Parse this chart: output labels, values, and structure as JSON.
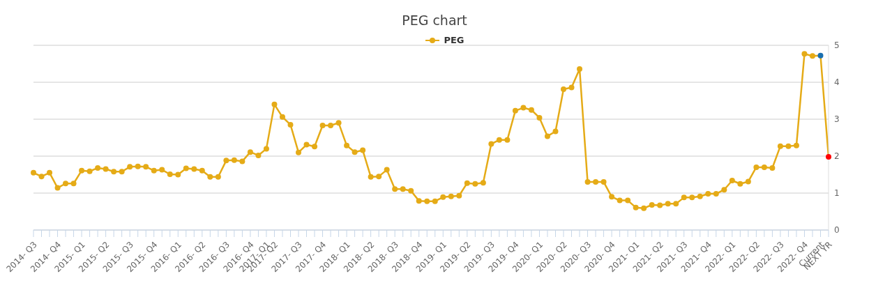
{
  "chart_data": {
    "type": "line",
    "title": "PEG chart",
    "categories": [
      "2014- Q3",
      null,
      null,
      "2014- Q4",
      null,
      null,
      "2015- Q1",
      null,
      null,
      "2015- Q2",
      null,
      null,
      "2015- Q3",
      null,
      null,
      "2015- Q4",
      null,
      null,
      "2016- Q1",
      null,
      null,
      "2016- Q2",
      null,
      null,
      "2016- Q3",
      null,
      null,
      "2016- Q4",
      null,
      "2017- Q1",
      "2017- Q2",
      null,
      null,
      "2017- Q3",
      null,
      null,
      "2017- Q4",
      null,
      null,
      "2018- Q1",
      null,
      null,
      "2018- Q2",
      null,
      null,
      "2018- Q3",
      null,
      null,
      "2018- Q4",
      null,
      null,
      "2019- Q1",
      null,
      null,
      "2019- Q2",
      null,
      null,
      "2019- Q3",
      null,
      null,
      "2019- Q4",
      null,
      null,
      "2020- Q1",
      null,
      null,
      "2020- Q2",
      null,
      null,
      "2020- Q3",
      null,
      null,
      "2020- Q4",
      null,
      null,
      "2021- Q1",
      null,
      null,
      "2021- Q2",
      null,
      null,
      "2021- Q3",
      null,
      null,
      "2021- Q4",
      null,
      null,
      "2022- Q1",
      null,
      null,
      "2022- Q2",
      null,
      null,
      "2022- Q3",
      null,
      null,
      "2022- Q4",
      null,
      "Current",
      "NEXT YR"
    ],
    "series": [
      {
        "name": "PEG",
        "color": "#e5ab17",
        "colors": [
          "#e5ab17",
          "#e5ab17",
          "#e5ab17",
          "#e5ab17",
          "#e5ab17",
          "#e5ab17",
          "#e5ab17",
          "#e5ab17",
          "#e5ab17",
          "#e5ab17",
          "#e5ab17",
          "#e5ab17",
          "#e5ab17",
          "#e5ab17",
          "#e5ab17",
          "#e5ab17",
          "#e5ab17",
          "#e5ab17",
          "#e5ab17",
          "#e5ab17",
          "#e5ab17",
          "#e5ab17",
          "#e5ab17",
          "#e5ab17",
          "#e5ab17",
          "#e5ab17",
          "#e5ab17",
          "#e5ab17",
          "#e5ab17",
          "#e5ab17",
          "#e5ab17",
          "#e5ab17",
          "#e5ab17",
          "#e5ab17",
          "#e5ab17",
          "#e5ab17",
          "#e5ab17",
          "#e5ab17",
          "#e5ab17",
          "#e5ab17",
          "#e5ab17",
          "#e5ab17",
          "#e5ab17",
          "#e5ab17",
          "#e5ab17",
          "#e5ab17",
          "#e5ab17",
          "#e5ab17",
          "#e5ab17",
          "#e5ab17",
          "#e5ab17",
          "#e5ab17",
          "#e5ab17",
          "#e5ab17",
          "#e5ab17",
          "#e5ab17",
          "#e5ab17",
          "#e5ab17",
          "#e5ab17",
          "#e5ab17",
          "#e5ab17",
          "#e5ab17",
          "#e5ab17",
          "#e5ab17",
          "#e5ab17",
          "#e5ab17",
          "#e5ab17",
          "#e5ab17",
          "#e5ab17",
          "#e5ab17",
          "#e5ab17",
          "#e5ab17",
          "#e5ab17",
          "#e5ab17",
          "#e5ab17",
          "#e5ab17",
          "#e5ab17",
          "#e5ab17",
          "#e5ab17",
          "#e5ab17",
          "#e5ab17",
          "#e5ab17",
          "#e5ab17",
          "#e5ab17",
          "#e5ab17",
          "#e5ab17",
          "#e5ab17",
          "#e5ab17",
          "#e5ab17",
          "#e5ab17",
          "#e5ab17",
          "#e5ab17",
          "#e5ab17",
          "#e5ab17",
          "#e5ab17",
          "#e5ab17",
          "#e5ab17",
          "#e5ab17",
          "#1a6faf",
          "#ff0000"
        ],
        "values": [
          1.55,
          1.45,
          1.55,
          1.14,
          1.26,
          1.26,
          1.61,
          1.59,
          1.68,
          1.65,
          1.58,
          1.58,
          1.71,
          1.72,
          1.71,
          1.61,
          1.63,
          1.51,
          1.5,
          1.67,
          1.65,
          1.61,
          1.44,
          1.44,
          1.88,
          1.89,
          1.86,
          2.11,
          2.02,
          2.2,
          3.4,
          3.06,
          2.85,
          2.1,
          2.31,
          2.26,
          2.83,
          2.83,
          2.9,
          2.29,
          2.11,
          2.16,
          1.44,
          1.45,
          1.63,
          1.11,
          1.11,
          1.06,
          0.79,
          0.78,
          0.78,
          0.89,
          0.91,
          0.93,
          1.27,
          1.25,
          1.28,
          2.33,
          2.44,
          2.44,
          3.23,
          3.31,
          3.25,
          3.04,
          2.54,
          2.67,
          3.81,
          3.86,
          4.36,
          1.3,
          1.3,
          1.3,
          0.9,
          0.8,
          0.8,
          0.61,
          0.59,
          0.68,
          0.67,
          0.71,
          0.71,
          0.88,
          0.88,
          0.91,
          0.98,
          0.98,
          1.09,
          1.34,
          1.25,
          1.31,
          1.7,
          1.7,
          1.68,
          2.27,
          2.27,
          2.29,
          4.77,
          4.71,
          4.72,
          1.98
        ]
      }
    ],
    "ylim": [
      0,
      5
    ],
    "yticks": [
      0,
      1,
      2,
      3,
      4,
      5
    ],
    "grid": "y",
    "legend": "top",
    "marker": "circle",
    "line_style": "solid"
  }
}
